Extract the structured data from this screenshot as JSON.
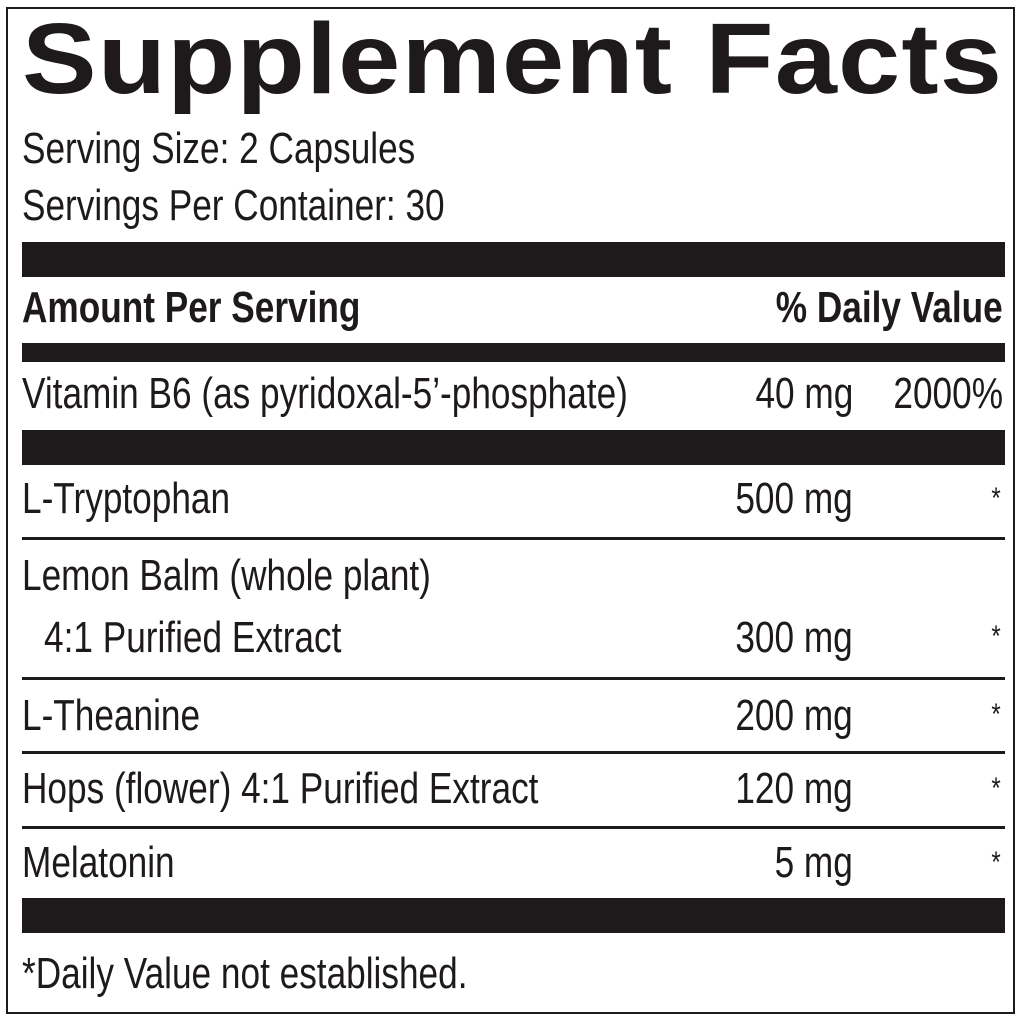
{
  "title": "Supplement Facts",
  "serving_size": "Serving Size: 2 Capsules",
  "servings_per_container": "Servings Per Container: 30",
  "header": {
    "amount": "Amount Per Serving",
    "dv": "% Daily Value"
  },
  "rows": [
    {
      "name": "Vitamin B6 (as pyridoxal-5’-phosphate)",
      "amount": "40 mg",
      "dv": "2000%"
    },
    {
      "name": "L-Tryptophan",
      "amount": "500 mg",
      "dv": "*"
    },
    {
      "name": "Lemon Balm (whole plant)",
      "name2": "4:1 Purified Extract",
      "amount": "300 mg",
      "dv": "*"
    },
    {
      "name": "L-Theanine",
      "amount": "200 mg",
      "dv": "*"
    },
    {
      "name": "Hops (flower) 4:1 Purified Extract",
      "amount": "120 mg",
      "dv": "*"
    },
    {
      "name": "Melatonin",
      "amount": "5 mg",
      "dv": "*"
    }
  ],
  "footnote": "*Daily Value not established."
}
